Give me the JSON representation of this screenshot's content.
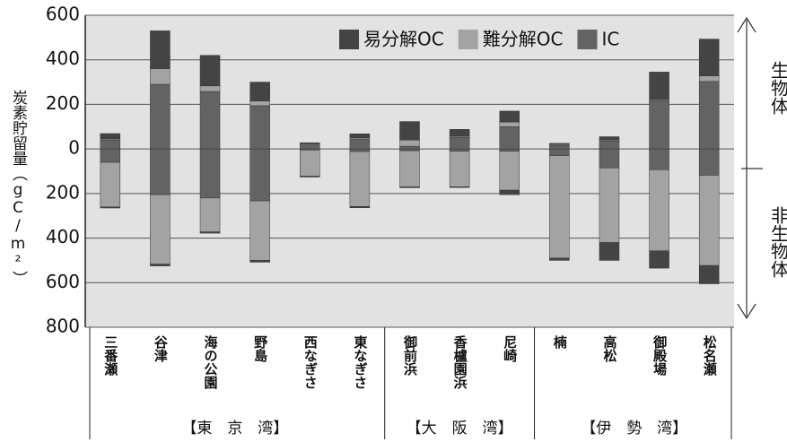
{
  "chart_data": {
    "type": "bar",
    "stacked": true,
    "y_label": "炭素貯留量（gC/m²）",
    "ylim": [
      -800,
      600
    ],
    "yticks": [
      600,
      400,
      200,
      0,
      {
        "value": -200,
        "label": "200"
      },
      {
        "value": -400,
        "label": "400"
      },
      {
        "value": -600,
        "label": "600"
      },
      {
        "value": -800,
        "label": "800"
      }
    ],
    "grid": true,
    "legend": "upper right",
    "groups": [
      {
        "label": "【東　京　湾】",
        "categories": [
          "三番瀬",
          "谷津",
          "海の公園",
          "野島",
          "西なぎさ",
          "東なぎさ"
        ]
      },
      {
        "label": "【大　阪　湾】",
        "categories": [
          "御前浜",
          "香櫨園浜",
          "尼崎"
        ]
      },
      {
        "label": "【伊　勢　湾】",
        "categories": [
          "楠",
          "高松",
          "御殿場",
          "松名瀬"
        ]
      }
    ],
    "annotations": [
      "生物体",
      "非生物体"
    ],
    "series": [
      {
        "name": "易分解OC",
        "color": "#444444",
        "values": [
          24,
          170,
          137,
          85,
          5,
          18,
          83,
          31,
          49,
          5,
          15,
          123,
          165
        ],
        "below_values": [
          -5,
          -8,
          -6,
          -8,
          -4,
          -6,
          -4,
          -3,
          -20,
          -10,
          -80,
          -78,
          -82
        ]
      },
      {
        "name": "難分解OC",
        "color": "#a3a3a3",
        "values": [
          5,
          70,
          25,
          21,
          5,
          5,
          28,
          5,
          21,
          5,
          5,
          5,
          25
        ],
        "below_values": [
          -200,
          -312,
          -152,
          -267,
          -117,
          -246,
          -162,
          -160,
          -175,
          -460,
          -335,
          -364,
          -405
        ]
      },
      {
        "name": "IC",
        "color": "#636363",
        "values": [
          40,
          290,
          258,
          194,
          18,
          45,
          12,
          52,
          100,
          15,
          35,
          217,
          303
        ],
        "below_values": [
          -60,
          -205,
          -220,
          -233,
          -5,
          -12,
          -8,
          -10,
          -10,
          -30,
          -85,
          -93,
          -118
        ]
      }
    ]
  }
}
